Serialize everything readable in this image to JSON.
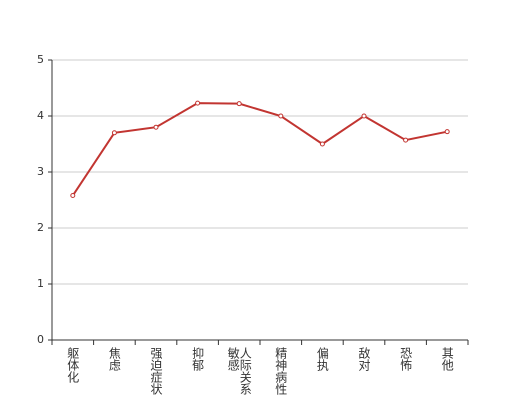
{
  "chart_data": {
    "type": "line",
    "categories": [
      "躯体化",
      "焦虑",
      "强迫症状",
      "抑郁",
      "人际关系敏感",
      "精神病性",
      "偏执",
      "敌对",
      "恐怖",
      "其他"
    ],
    "values": [
      2.58,
      3.7,
      3.8,
      4.23,
      4.22,
      4.0,
      3.5,
      4.0,
      3.57,
      3.72
    ],
    "color": "#c23531",
    "ylim": [
      0,
      5
    ],
    "yticks": [
      0,
      1,
      2,
      3,
      4,
      5
    ],
    "grid": true
  }
}
